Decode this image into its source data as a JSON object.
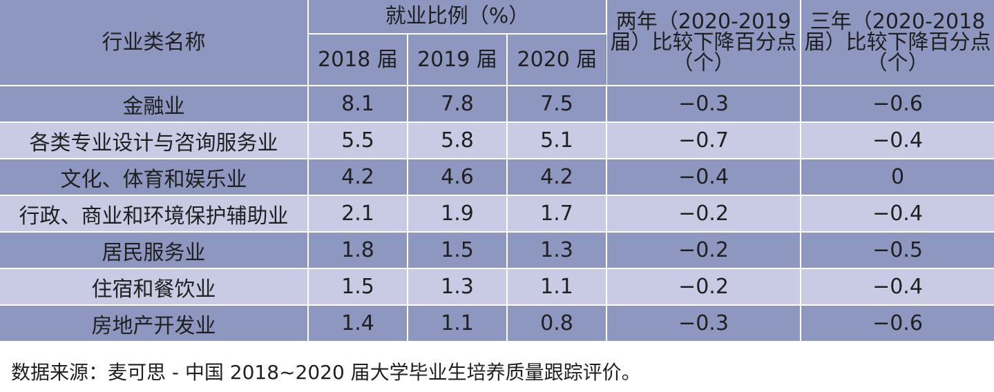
{
  "table": {
    "header": {
      "industry_label": "行业类名称",
      "ratio_group_label": "就业比例（%）",
      "years": [
        "2018 届",
        "2019 届",
        "2020 届"
      ],
      "two_year_label": "两年（2020-2019 届）比较下降百分点（个）",
      "three_year_label": "三年（2020-2018 届）比较下降百分点（个）"
    },
    "rows": [
      {
        "name": "金融业",
        "y2018": "8.1",
        "y2019": "7.8",
        "y2020": "7.5",
        "two_year": "−0.3",
        "three_year": "−0.6"
      },
      {
        "name": "各类专业设计与咨询服务业",
        "y2018": "5.5",
        "y2019": "5.8",
        "y2020": "5.1",
        "two_year": "−0.7",
        "three_year": "−0.4"
      },
      {
        "name": "文化、体育和娱乐业",
        "y2018": "4.2",
        "y2019": "4.6",
        "y2020": "4.2",
        "two_year": "−0.4",
        "three_year": "0"
      },
      {
        "name": "行政、商业和环境保护辅助业",
        "y2018": "2.1",
        "y2019": "1.9",
        "y2020": "1.7",
        "two_year": "−0.2",
        "three_year": "−0.4"
      },
      {
        "name": "居民服务业",
        "y2018": "1.8",
        "y2019": "1.5",
        "y2020": "1.3",
        "two_year": "−0.2",
        "three_year": "−0.5"
      },
      {
        "name": "住宿和餐饮业",
        "y2018": "1.5",
        "y2019": "1.3",
        "y2020": "1.1",
        "two_year": "−0.2",
        "three_year": "−0.4"
      },
      {
        "name": "房地产开发业",
        "y2018": "1.4",
        "y2019": "1.1",
        "y2020": "0.8",
        "two_year": "−0.3",
        "three_year": "−0.6"
      }
    ]
  },
  "source_note": "数据来源：麦可思 - 中国 2018~2020 届大学毕业生培养质量跟踪评价。",
  "colors": {
    "header_bg": "#8e97c0",
    "row_dark": "#8e97c0",
    "row_light": "#c9cbe4"
  }
}
